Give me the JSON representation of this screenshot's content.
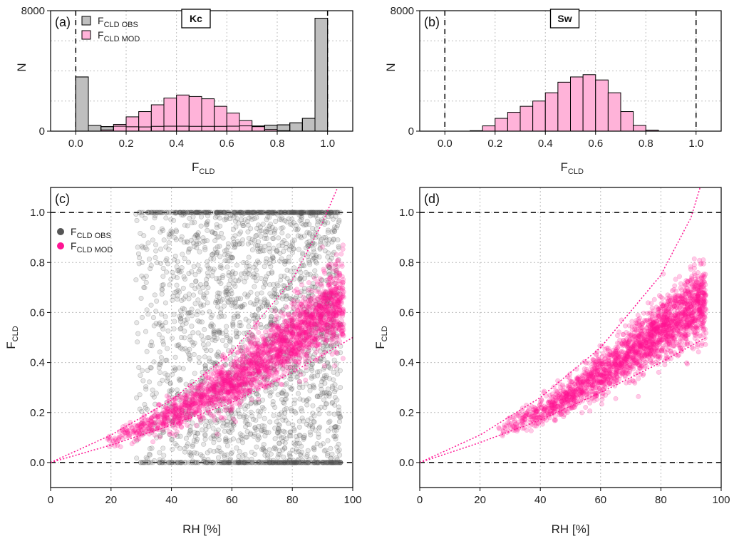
{
  "colors": {
    "obs_bar": "#bfbfbf",
    "mod_bar": "#ffb3d9",
    "obs_point": "#555555",
    "mod_point": "#ff1493",
    "curve": "#ff1493"
  },
  "chart_data": [
    {
      "panel": "(a)",
      "site": "Kc",
      "type": "bar",
      "xlabel_main": "F",
      "xlabel_sub": "CLD",
      "ylabel": "N",
      "xlim": [
        -0.1,
        1.1
      ],
      "ylim": [
        0,
        8000
      ],
      "xticks": [
        "0.0",
        "0.2",
        "0.4",
        "0.6",
        "0.8",
        "1.0"
      ],
      "yticks": [
        "0",
        "8000"
      ],
      "bin_width": 0.05,
      "bin_starts": [
        0.0,
        0.05,
        0.1,
        0.15,
        0.2,
        0.25,
        0.3,
        0.35,
        0.4,
        0.45,
        0.5,
        0.55,
        0.6,
        0.65,
        0.7,
        0.75,
        0.8,
        0.85,
        0.9,
        0.95
      ],
      "reference_lines_x": [
        0.0,
        1.0
      ],
      "legend_position": "top-left",
      "series": [
        {
          "name": "F",
          "name_sub": "CLD OBS",
          "values": [
            3600,
            380,
            300,
            330,
            290,
            280,
            320,
            330,
            330,
            320,
            320,
            320,
            330,
            350,
            340,
            400,
            420,
            550,
            850,
            7500
          ]
        },
        {
          "name": "F",
          "name_sub": "CLD MOD",
          "values": [
            0,
            0,
            80,
            450,
            950,
            1300,
            1750,
            2200,
            2400,
            2300,
            2150,
            1650,
            1200,
            700,
            300,
            110,
            30,
            0,
            0,
            0
          ]
        }
      ]
    },
    {
      "panel": "(b)",
      "site": "Sw",
      "type": "bar",
      "xlabel_main": "F",
      "xlabel_sub": "CLD",
      "ylabel": "N",
      "xlim": [
        -0.1,
        1.1
      ],
      "ylim": [
        0,
        8000
      ],
      "xticks": [
        "0.0",
        "0.2",
        "0.4",
        "0.6",
        "0.8",
        "1.0"
      ],
      "yticks": [
        "0",
        "8000"
      ],
      "bin_width": 0.05,
      "bin_starts": [
        0.0,
        0.05,
        0.1,
        0.15,
        0.2,
        0.25,
        0.3,
        0.35,
        0.4,
        0.45,
        0.5,
        0.55,
        0.6,
        0.65,
        0.7,
        0.75,
        0.8,
        0.85,
        0.9,
        0.95
      ],
      "reference_lines_x": [
        0.0,
        1.0
      ],
      "series": [
        {
          "name": "F",
          "name_sub": "CLD MOD",
          "values": [
            0,
            0,
            30,
            350,
            850,
            1250,
            1650,
            2000,
            2550,
            3250,
            3600,
            3750,
            3400,
            2550,
            1300,
            380,
            70,
            0,
            0,
            0
          ]
        }
      ]
    },
    {
      "panel": "(c)",
      "type": "scatter",
      "xlabel": "RH [%]",
      "ylabel_main": "F",
      "ylabel_sub": "CLD",
      "xlim": [
        0,
        100
      ],
      "ylim": [
        -0.1,
        1.1
      ],
      "xticks": [
        "0",
        "20",
        "40",
        "60",
        "80",
        "100"
      ],
      "yticks": [
        "0.0",
        "0.2",
        "0.4",
        "0.6",
        "0.8",
        "1.0"
      ],
      "reference_lines_y": [
        0.0,
        1.0
      ],
      "legend_position": "top-left",
      "obs_rh_range": [
        28,
        96
      ],
      "mod_rh_range": [
        18,
        97
      ],
      "mod_center_curve": {
        "rh": [
          20,
          40,
          60,
          80,
          95
        ],
        "fcld": [
          0.09,
          0.19,
          0.32,
          0.5,
          0.63
        ]
      },
      "envelope_curves": [
        {
          "rh": [
            0,
            20,
            40,
            60,
            80,
            90,
            95
          ],
          "fcld": [
            0.0,
            0.11,
            0.25,
            0.44,
            0.73,
            0.96,
            1.1
          ]
        },
        {
          "rh": [
            0,
            20,
            40,
            60,
            80,
            100
          ],
          "fcld": [
            0.0,
            0.07,
            0.15,
            0.24,
            0.36,
            0.5
          ]
        }
      ],
      "series": [
        {
          "name": "F",
          "name_sub": "CLD OBS"
        },
        {
          "name": "F",
          "name_sub": "CLD MOD"
        }
      ]
    },
    {
      "panel": "(d)",
      "type": "scatter",
      "xlabel": "RH [%]",
      "ylabel_main": "F",
      "ylabel_sub": "CLD",
      "xlim": [
        0,
        100
      ],
      "ylim": [
        -0.1,
        1.1
      ],
      "xticks": [
        "0",
        "20",
        "40",
        "60",
        "80",
        "100"
      ],
      "yticks": [
        "0.0",
        "0.2",
        "0.4",
        "0.6",
        "0.8",
        "1.0"
      ],
      "reference_lines_y": [
        0.0,
        1.0
      ],
      "mod_rh_range": [
        25,
        95
      ],
      "mod_center_curve": {
        "rh": [
          25,
          40,
          60,
          80,
          93
        ],
        "fcld": [
          0.12,
          0.2,
          0.35,
          0.53,
          0.64
        ]
      },
      "envelope_curves": [
        {
          "rh": [
            0,
            20,
            40,
            60,
            80,
            90,
            93
          ],
          "fcld": [
            0.0,
            0.11,
            0.26,
            0.46,
            0.75,
            0.98,
            1.1
          ]
        },
        {
          "rh": [
            0,
            20,
            40,
            60,
            80,
            95
          ],
          "fcld": [
            0.0,
            0.08,
            0.17,
            0.28,
            0.4,
            0.5
          ]
        }
      ],
      "series": [
        {
          "name": "F",
          "name_sub": "CLD MOD"
        }
      ]
    }
  ]
}
